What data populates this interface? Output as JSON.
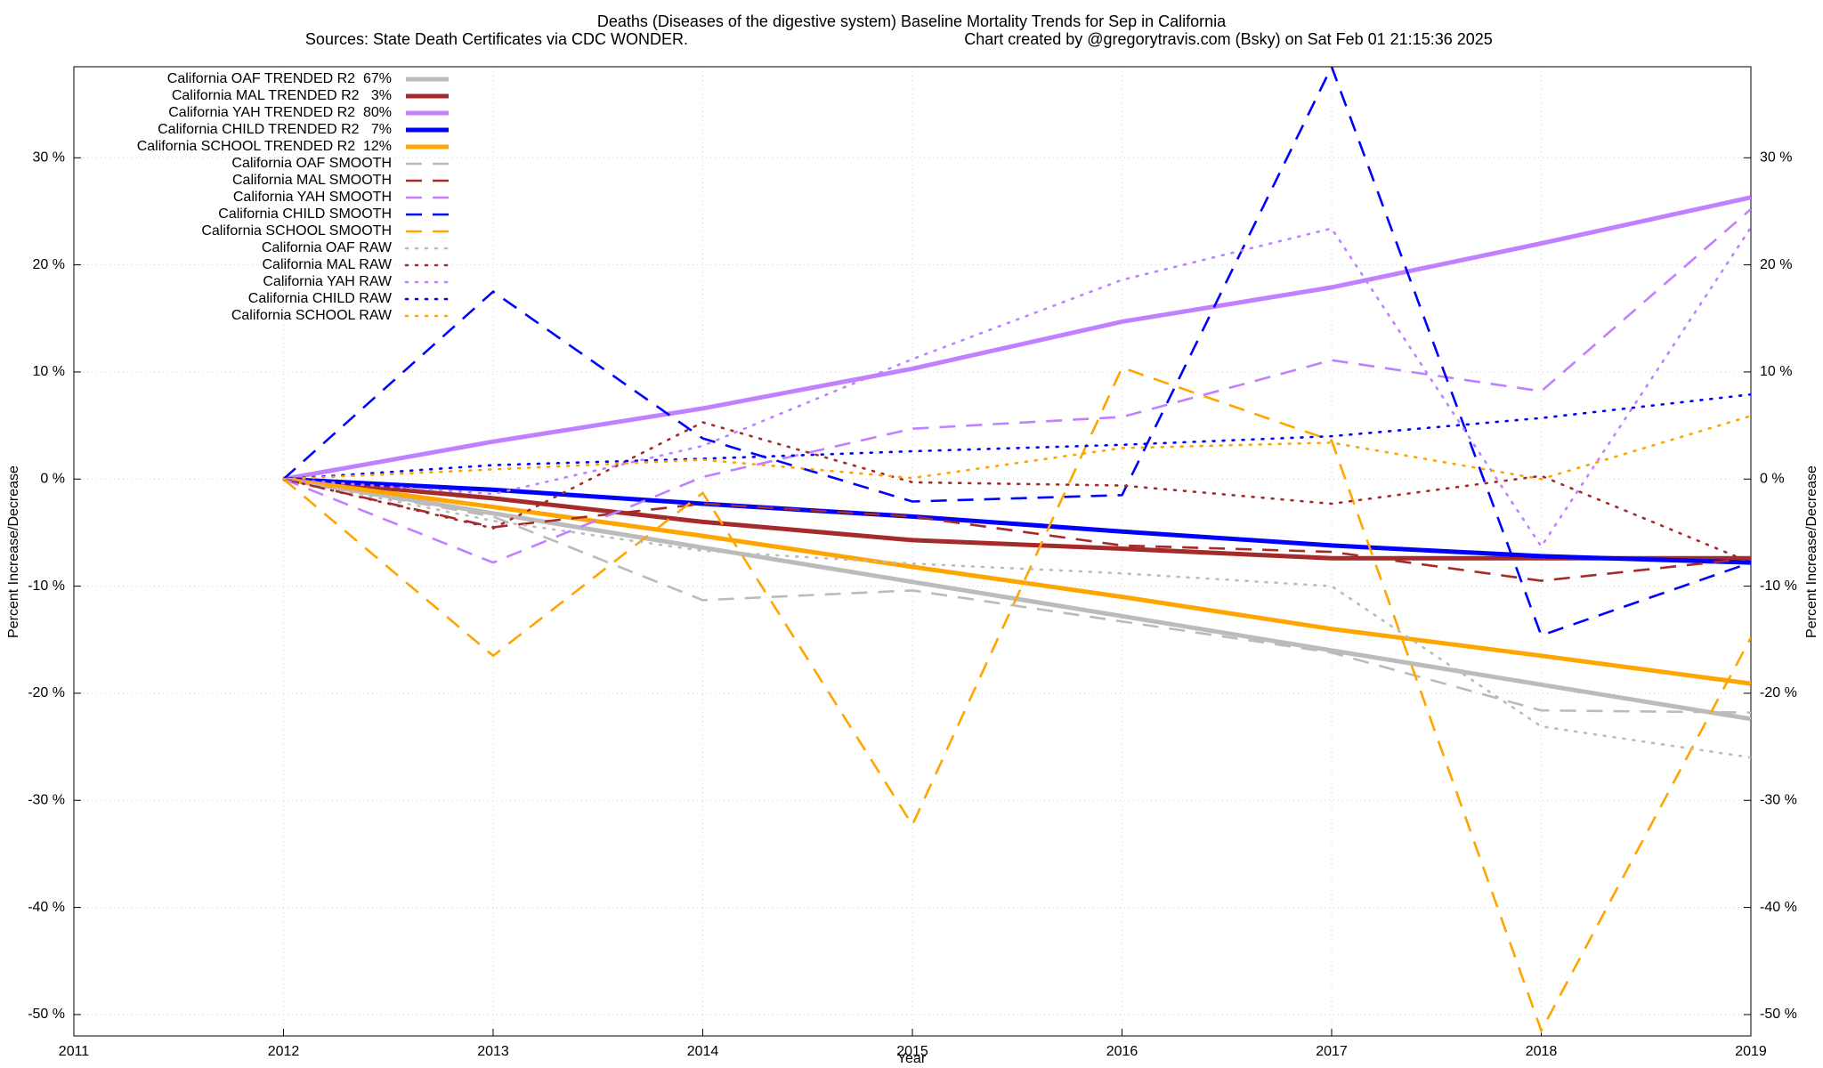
{
  "chart_data": {
    "type": "line",
    "title": "Deaths (Diseases of the digestive system)  Baseline Mortality Trends for Sep in California",
    "subtitle": "Sources: State Death Certificates via CDC WONDER.",
    "credit": "Chart created by @gregorytravis.com (Bsky) on Sat Feb 01 21:15:36 2025",
    "xlabel": "Year",
    "ylabel": "Percent Increase/Decrease",
    "y2label": "Percent Increase/Decrease",
    "xlim": [
      2011,
      2019
    ],
    "xticks": [
      2011,
      2012,
      2013,
      2014,
      2015,
      2016,
      2017,
      2018,
      2019
    ],
    "ylim": [
      -52,
      38.5
    ],
    "yticks": [
      {
        "value": -50,
        "label": "-50 %"
      },
      {
        "value": -40,
        "label": "-40 %"
      },
      {
        "value": -30,
        "label": "-30 %"
      },
      {
        "value": -20,
        "label": "-20 %"
      },
      {
        "value": -10,
        "label": "-10 %"
      },
      {
        "value": 0,
        "label": "0 %"
      },
      {
        "value": 10,
        "label": "10 %"
      },
      {
        "value": 20,
        "label": "20 %"
      },
      {
        "value": 30,
        "label": "30 %"
      }
    ],
    "y2lim": [
      -52,
      38.5
    ],
    "y2ticks": [
      {
        "value": -50,
        "label": "-50 %"
      },
      {
        "value": -40,
        "label": "-40 %"
      },
      {
        "value": -30,
        "label": "-30 %"
      },
      {
        "value": -20,
        "label": "-20 %"
      },
      {
        "value": -10,
        "label": "-10 %"
      },
      {
        "value": 0,
        "label": "0 %"
      },
      {
        "value": 10,
        "label": "10 %"
      },
      {
        "value": 20,
        "label": "20 %"
      },
      {
        "value": 30,
        "label": "30 %"
      }
    ],
    "grid": true,
    "legend": "top-left",
    "x": [
      2012,
      2013,
      2014,
      2015,
      2016,
      2017,
      2018,
      2019
    ],
    "series": [
      {
        "name": "California OAF TRENDED R2  67%",
        "color": "#bbbbbb",
        "style": "solid",
        "values": [
          0,
          -3.2,
          -6.4,
          -9.6,
          -12.8,
          -16.0,
          -19.2,
          -22.4
        ]
      },
      {
        "name": "California MAL TRENDED R2   3%",
        "color": "#a52a2a",
        "style": "solid",
        "values": [
          0,
          -1.8,
          -4.0,
          -5.7,
          -6.5,
          -7.4,
          -7.4,
          -7.4
        ]
      },
      {
        "name": "California YAH TRENDED R2  80%",
        "color": "#c080ff",
        "style": "solid",
        "values": [
          0,
          3.5,
          6.6,
          10.3,
          14.7,
          17.9,
          22.0,
          26.3
        ]
      },
      {
        "name": "California CHILD TRENDED R2   7%",
        "color": "#0000ff",
        "style": "solid",
        "values": [
          0,
          -1.0,
          -2.3,
          -3.5,
          -4.9,
          -6.2,
          -7.2,
          -7.8
        ]
      },
      {
        "name": "California SCHOOL TRENDED R2  12%",
        "color": "#ffa500",
        "style": "solid",
        "values": [
          0,
          -2.6,
          -5.3,
          -8.2,
          -11.0,
          -14.0,
          -16.5,
          -19.1
        ]
      },
      {
        "name": "California OAF SMOOTH",
        "color": "#bbbbbb",
        "style": "dashed",
        "values": [
          0,
          -3.5,
          -11.3,
          -10.4,
          -13.3,
          -16.2,
          -21.6,
          -21.8
        ]
      },
      {
        "name": "California MAL SMOOTH",
        "color": "#a52a2a",
        "style": "dashed",
        "values": [
          0,
          -4.5,
          -2.3,
          -3.5,
          -6.2,
          -6.8,
          -9.5,
          -7.4
        ]
      },
      {
        "name": "California YAH SMOOTH",
        "color": "#c080ff",
        "style": "dashed",
        "values": [
          0,
          -7.8,
          0.2,
          4.7,
          5.8,
          11.1,
          8.2,
          25.2
        ]
      },
      {
        "name": "California CHILD SMOOTH",
        "color": "#0000ff",
        "style": "dashed",
        "values": [
          0,
          17.5,
          3.8,
          -2.1,
          -1.5,
          38.5,
          -14.6,
          -7.8
        ]
      },
      {
        "name": "California SCHOOL SMOOTH",
        "color": "#ffa500",
        "style": "dashed",
        "values": [
          0,
          -16.5,
          -1.3,
          -32.3,
          10.4,
          3.6,
          -51.5,
          -14.8
        ]
      },
      {
        "name": "California OAF RAW",
        "color": "#bbbbbb",
        "style": "dotted",
        "values": [
          0,
          -3.9,
          -6.7,
          -7.9,
          -8.8,
          -10.0,
          -23.1,
          -26.0
        ]
      },
      {
        "name": "California MAL RAW",
        "color": "#a52a2a",
        "style": "dotted",
        "values": [
          0,
          -4.6,
          5.3,
          -0.3,
          -0.6,
          -2.3,
          0.3,
          -7.8
        ]
      },
      {
        "name": "California YAH RAW",
        "color": "#c080ff",
        "style": "dotted",
        "values": [
          0,
          -1.4,
          3.1,
          11.2,
          18.6,
          23.4,
          -6.3,
          23.5
        ]
      },
      {
        "name": "California CHILD RAW",
        "color": "#0000ff",
        "style": "dotted",
        "values": [
          0,
          1.3,
          1.9,
          2.6,
          3.2,
          4.0,
          5.7,
          7.9
        ]
      },
      {
        "name": "California SCHOOL RAW",
        "color": "#ffa500",
        "style": "dotted",
        "values": [
          0,
          0.9,
          1.8,
          0.1,
          2.9,
          3.4,
          0.0,
          5.9
        ]
      }
    ]
  }
}
